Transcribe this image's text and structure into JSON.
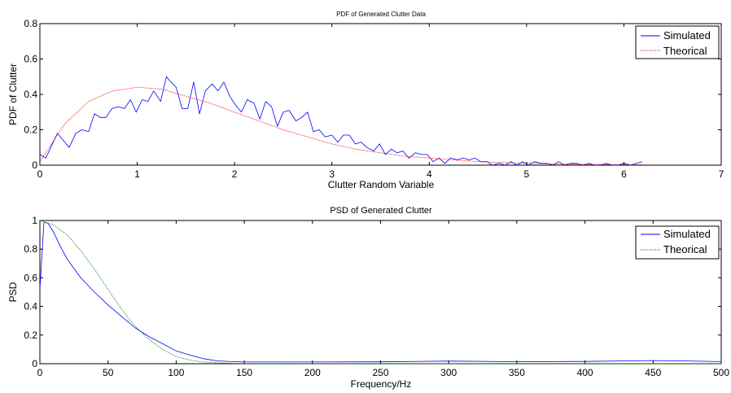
{
  "chart_data": [
    {
      "type": "line",
      "title": "PDF of Generated Clutter Data",
      "xlabel": "Clutter Random Variable",
      "ylabel": "PDF of Clutter",
      "xlim": [
        0,
        7
      ],
      "ylim": [
        0,
        0.8
      ],
      "xticks": [
        "0",
        "1",
        "2",
        "3",
        "4",
        "5",
        "6",
        "7"
      ],
      "yticks": [
        "0",
        "0.2",
        "0.4",
        "0.6",
        "0.8"
      ],
      "grid": false,
      "legend_position": "top-right",
      "series": [
        {
          "name": "Simulated",
          "color": "#0000ff",
          "x": [
            0,
            0.06,
            0.18,
            0.3,
            0.37,
            0.43,
            0.5,
            0.56,
            0.62,
            0.68,
            0.74,
            0.81,
            0.87,
            0.93,
            0.99,
            1.05,
            1.11,
            1.17,
            1.24,
            1.3,
            1.33,
            1.4,
            1.46,
            1.52,
            1.58,
            1.64,
            1.7,
            1.77,
            1.83,
            1.89,
            1.95,
            2.01,
            2.07,
            2.13,
            2.2,
            2.26,
            2.32,
            2.38,
            2.44,
            2.5,
            2.56,
            2.63,
            2.69,
            2.75,
            2.81,
            2.87,
            2.93,
            3.0,
            3.06,
            3.12,
            3.18,
            3.24,
            3.3,
            3.36,
            3.43,
            3.49,
            3.55,
            3.61,
            3.67,
            3.73,
            3.79,
            3.86,
            3.92,
            3.98,
            4.04,
            4.1,
            4.16,
            4.22,
            4.29,
            4.35,
            4.41,
            4.47,
            4.53,
            4.59,
            4.65,
            4.72,
            4.78,
            4.84,
            4.9,
            4.96,
            5.02,
            5.08,
            5.15,
            5.21,
            5.27,
            5.33,
            5.39,
            5.45,
            5.51,
            5.58,
            5.64,
            5.7,
            5.76,
            5.82,
            5.88,
            5.94,
            6.0,
            6.07,
            6.13,
            6.19
          ],
          "y": [
            0.06,
            0.04,
            0.18,
            0.1,
            0.18,
            0.2,
            0.19,
            0.29,
            0.27,
            0.27,
            0.32,
            0.33,
            0.32,
            0.37,
            0.3,
            0.37,
            0.36,
            0.42,
            0.36,
            0.5,
            0.48,
            0.44,
            0.32,
            0.32,
            0.47,
            0.29,
            0.42,
            0.46,
            0.42,
            0.47,
            0.39,
            0.34,
            0.3,
            0.37,
            0.35,
            0.26,
            0.36,
            0.33,
            0.22,
            0.3,
            0.31,
            0.25,
            0.27,
            0.3,
            0.19,
            0.2,
            0.16,
            0.17,
            0.13,
            0.17,
            0.17,
            0.12,
            0.13,
            0.1,
            0.08,
            0.12,
            0.06,
            0.09,
            0.07,
            0.08,
            0.04,
            0.07,
            0.06,
            0.06,
            0.02,
            0.04,
            0.01,
            0.04,
            0.03,
            0.04,
            0.03,
            0.04,
            0.02,
            0.02,
            0.0,
            0.01,
            0.0,
            0.02,
            0.0,
            0.02,
            0.0,
            0.02,
            0.01,
            0.01,
            0.0,
            0.02,
            0.0,
            0.01,
            0.01,
            0.0,
            0.01,
            0.0,
            0.0,
            0.01,
            0.0,
            0.0,
            0.01,
            0.0,
            0.01,
            0.02
          ]
        },
        {
          "name": "Theorical",
          "color": "#ff0000",
          "x": [
            0,
            0.25,
            0.5,
            0.75,
            1.0,
            1.25,
            1.5,
            1.75,
            2.0,
            2.25,
            2.5,
            2.75,
            3.0,
            3.25,
            3.5,
            3.75,
            4.0,
            4.25,
            4.5,
            4.75,
            5.0,
            5.25,
            5.5,
            5.75,
            6.0,
            6.25
          ],
          "y": [
            0.02,
            0.23,
            0.36,
            0.42,
            0.44,
            0.43,
            0.39,
            0.35,
            0.3,
            0.25,
            0.2,
            0.16,
            0.12,
            0.09,
            0.07,
            0.05,
            0.04,
            0.03,
            0.02,
            0.015,
            0.01,
            0.007,
            0.005,
            0.004,
            0.003,
            0.002
          ]
        }
      ]
    },
    {
      "type": "line",
      "title": "PSD of Generated Clutter",
      "xlabel": "Frequency/Hz",
      "ylabel": "PSD",
      "xlim": [
        0,
        500
      ],
      "ylim": [
        0,
        1
      ],
      "xticks": [
        "0",
        "50",
        "100",
        "150",
        "200",
        "250",
        "300",
        "350",
        "400",
        "450",
        "500"
      ],
      "yticks": [
        "0",
        "0.2",
        "0.4",
        "0.6",
        "0.8",
        "1"
      ],
      "grid": false,
      "legend_position": "top-right",
      "series": [
        {
          "name": "Simulated",
          "color": "#0000ff",
          "x": [
            0,
            3,
            6,
            10,
            15,
            20,
            30,
            40,
            50,
            60,
            70,
            80,
            90,
            100,
            110,
            120,
            130,
            140,
            150,
            200,
            250,
            300,
            350,
            400,
            450,
            470,
            500
          ],
          "y": [
            0.52,
            0.99,
            0.98,
            0.92,
            0.82,
            0.73,
            0.6,
            0.5,
            0.41,
            0.33,
            0.25,
            0.19,
            0.14,
            0.09,
            0.06,
            0.035,
            0.02,
            0.015,
            0.012,
            0.012,
            0.013,
            0.018,
            0.014,
            0.016,
            0.022,
            0.02,
            0.015
          ]
        },
        {
          "name": "Theorical",
          "color": "#008000",
          "x": [
            0,
            10,
            20,
            30,
            40,
            50,
            60,
            70,
            80,
            90,
            100,
            110,
            120,
            130,
            140,
            150,
            200,
            300,
            400,
            500
          ],
          "y": [
            1.0,
            0.97,
            0.9,
            0.79,
            0.66,
            0.52,
            0.38,
            0.26,
            0.17,
            0.1,
            0.05,
            0.025,
            0.012,
            0.006,
            0.003,
            0.001,
            0.0,
            0.0,
            0.0,
            0.0
          ]
        }
      ]
    }
  ]
}
